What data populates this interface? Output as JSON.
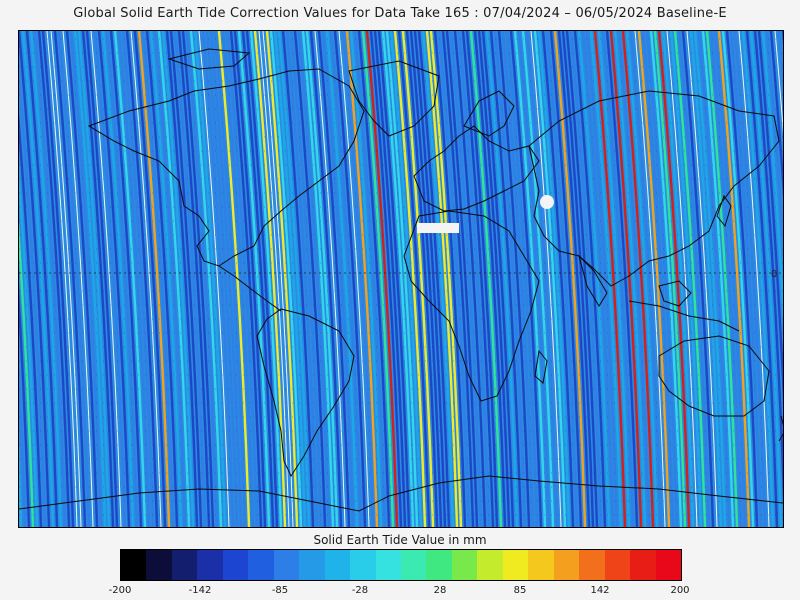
{
  "title": "Global Solid Earth Tide Correction Values for Data Take 165 : 07/04/2024 – 06/05/2024 Baseline-E",
  "map": {
    "grid_label_right": "0",
    "colors": [
      "#1e47c8",
      "#2f7fe6",
      "#1ea7e8",
      "#33d6ea",
      "#2fe49a",
      "#f0ea2a",
      "#f4a11e",
      "#d42018",
      "#f5f5f5"
    ]
  },
  "colorbar": {
    "title": "Solid Earth Tide Value in mm",
    "tick_labels": [
      "-200",
      "-142",
      "-85",
      "-28",
      "28",
      "85",
      "142",
      "200"
    ],
    "range": [
      -200,
      200
    ],
    "colors": [
      "#000000",
      "#0d0d3a",
      "#141e6e",
      "#1a2fa8",
      "#1c45d2",
      "#2060e0",
      "#2d7ee6",
      "#259ae6",
      "#1fb3ea",
      "#29cdea",
      "#36e2e0",
      "#3aeab0",
      "#3fe880",
      "#78e84a",
      "#c4ec2c",
      "#f0ea20",
      "#f4c81c",
      "#f4a01e",
      "#f2701c",
      "#ee4418",
      "#e81e16",
      "#e8081a"
    ]
  }
}
